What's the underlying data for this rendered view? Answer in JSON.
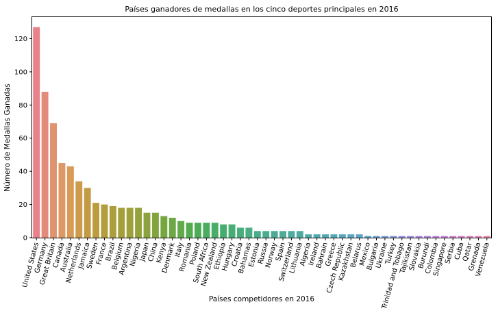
{
  "chart_data": {
    "type": "bar",
    "title": "Países ganadores de medallas en los cinco deportes principales en 2016",
    "xlabel": "Países competidores en 2016",
    "ylabel": "Número de Medallas Ganadas",
    "ylim": [
      0,
      133
    ],
    "yticks": [
      0,
      20,
      40,
      60,
      80,
      100,
      120
    ],
    "grid": false,
    "legend": "none",
    "categories": [
      "United States",
      "Germany",
      "Great Britain",
      "Canada",
      "Australia",
      "Netherlands",
      "Jamaica",
      "Sweden",
      "France",
      "Brazil",
      "Belgium",
      "Argentina",
      "Nigeria",
      "Japan",
      "China",
      "Kenya",
      "Denmark",
      "Italy",
      "Romania",
      "Poland",
      "South Africa",
      "New Zealand",
      "Ethiopia",
      "Hungary",
      "Croatia",
      "Bahamas",
      "Estonia",
      "Russia",
      "Norway",
      "Spain",
      "Switzerland",
      "Lithuania",
      "Algeria",
      "Ireland",
      "Bahrain",
      "Greece",
      "Czech Republic",
      "Kazakhstan",
      "Belarus",
      "Mexico",
      "Bulgaria",
      "Ukraine",
      "Turkey",
      "Trinidad and Tobago",
      "Tajikistan",
      "Slovakia",
      "Burundi",
      "Colombia",
      "Singapore",
      "Serbia",
      "Cuba",
      "Qatar",
      "Grenada",
      "Venezuela"
    ],
    "values": [
      127,
      88,
      69,
      45,
      43,
      34,
      30,
      21,
      20,
      19,
      18,
      18,
      18,
      15,
      15,
      13,
      12,
      10,
      9,
      9,
      9,
      9,
      8,
      8,
      6,
      6,
      4,
      4,
      4,
      4,
      4,
      4,
      2,
      2,
      2,
      2,
      2,
      2,
      2,
      1,
      1,
      1,
      1,
      1,
      1,
      1,
      1,
      1,
      1,
      1,
      1,
      1,
      1,
      1
    ],
    "colors": [
      "#e8818a",
      "#e48a7a",
      "#e1926e",
      "#dc9866",
      "#d89a56",
      "#cc9b4b",
      "#c49b45",
      "#bb9c3f",
      "#b49d3d",
      "#ac9e3c",
      "#a59f3b",
      "#9da03b",
      "#95a13b",
      "#8ca23d",
      "#82a43e",
      "#77a641",
      "#6ca845",
      "#62aa4a",
      "#57ab4f",
      "#4fac56",
      "#4aac5e",
      "#48ad66",
      "#47ad6e",
      "#48ad75",
      "#49ad7c",
      "#4aad83",
      "#4bac89",
      "#4cac8f",
      "#4dab95",
      "#4eab9a",
      "#4fab9f",
      "#50aaa4",
      "#51aaa9",
      "#52a9ad",
      "#54a9b2",
      "#56a8b7",
      "#58a7bc",
      "#5ba6c2",
      "#5fa4c8",
      "#65a2ce",
      "#6e9fd4",
      "#789bd9",
      "#8497dd",
      "#9092e0",
      "#9c8ee1",
      "#a88ae1",
      "#b386df",
      "#bd83dc",
      "#c781d7",
      "#d07fd1",
      "#d87fca",
      "#df7fc1",
      "#e381b7",
      "#e684a9"
    ]
  }
}
